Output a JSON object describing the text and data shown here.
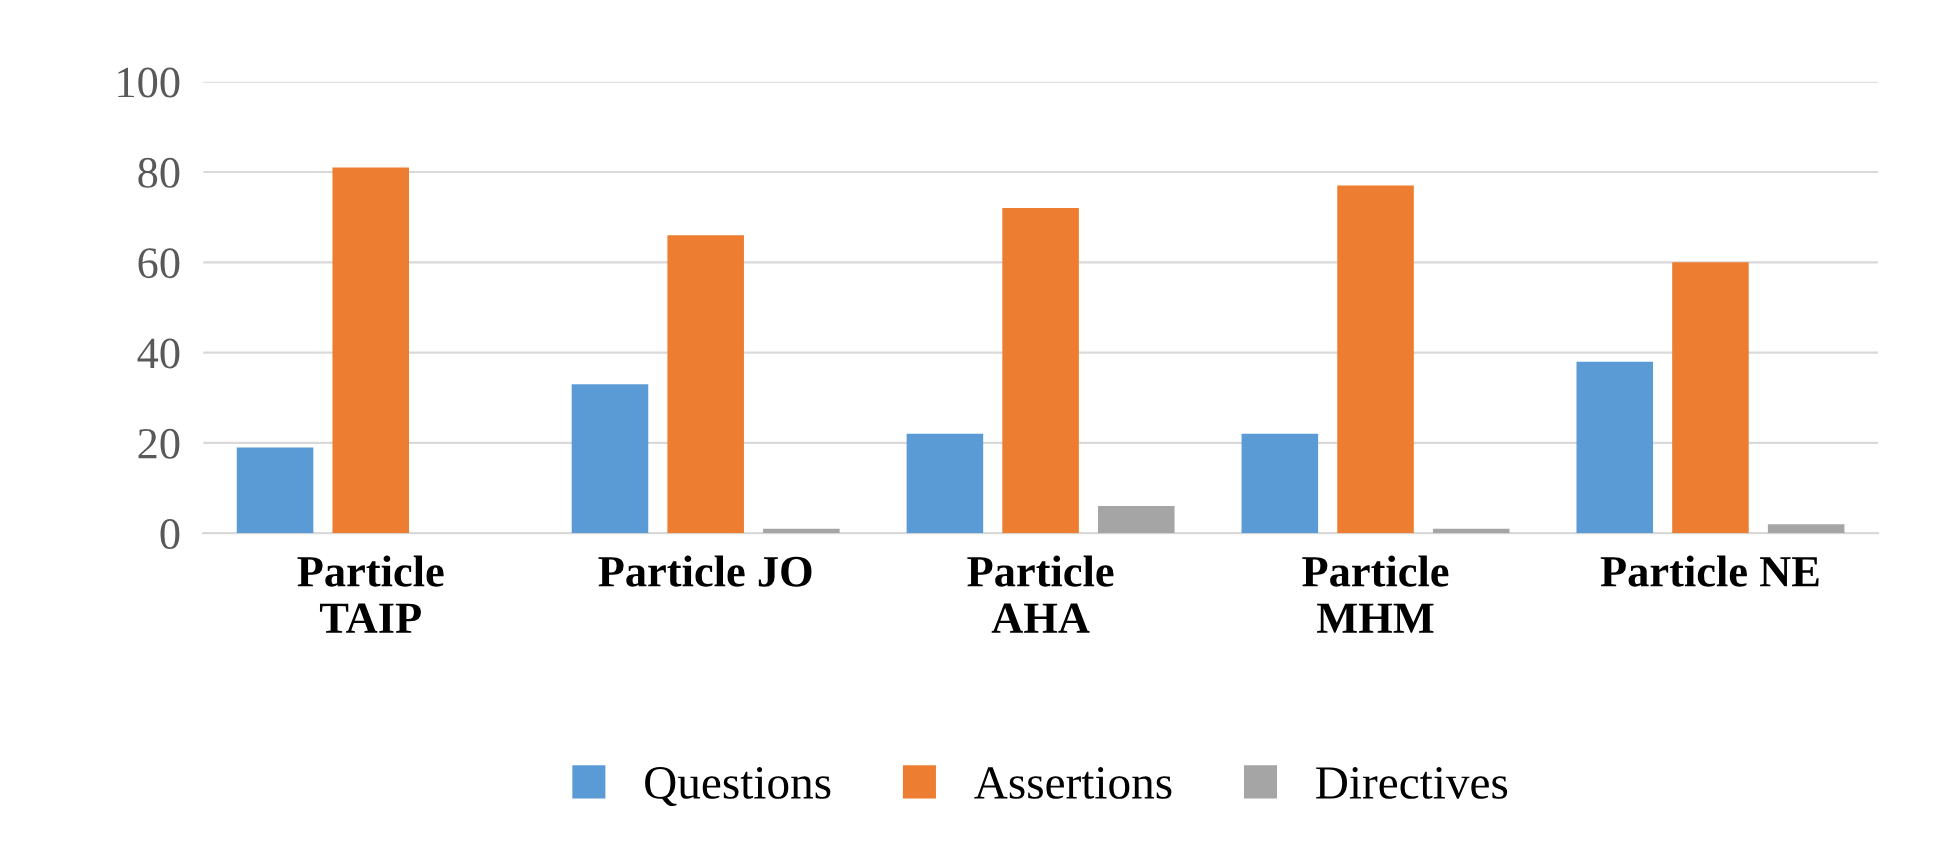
{
  "chart_data": {
    "type": "bar",
    "categories": [
      "Particle\nTAIP",
      "Particle JO",
      "Particle\nAHA",
      "Particle\nMHM",
      "Particle NE"
    ],
    "series": [
      {
        "name": "Questions",
        "color": "#5b9bd5",
        "values": [
          19,
          33,
          22,
          22,
          38
        ]
      },
      {
        "name": "Assertions",
        "color": "#ed7d31",
        "values": [
          81,
          66,
          72,
          77,
          60
        ]
      },
      {
        "name": "Directives",
        "color": "#a5a5a5",
        "values": [
          0,
          1,
          6,
          1,
          2
        ]
      }
    ],
    "ylim": [
      0,
      100
    ],
    "yticks": [
      0,
      20,
      40,
      60,
      80,
      100
    ],
    "grid": "y",
    "legend": "bottom"
  }
}
